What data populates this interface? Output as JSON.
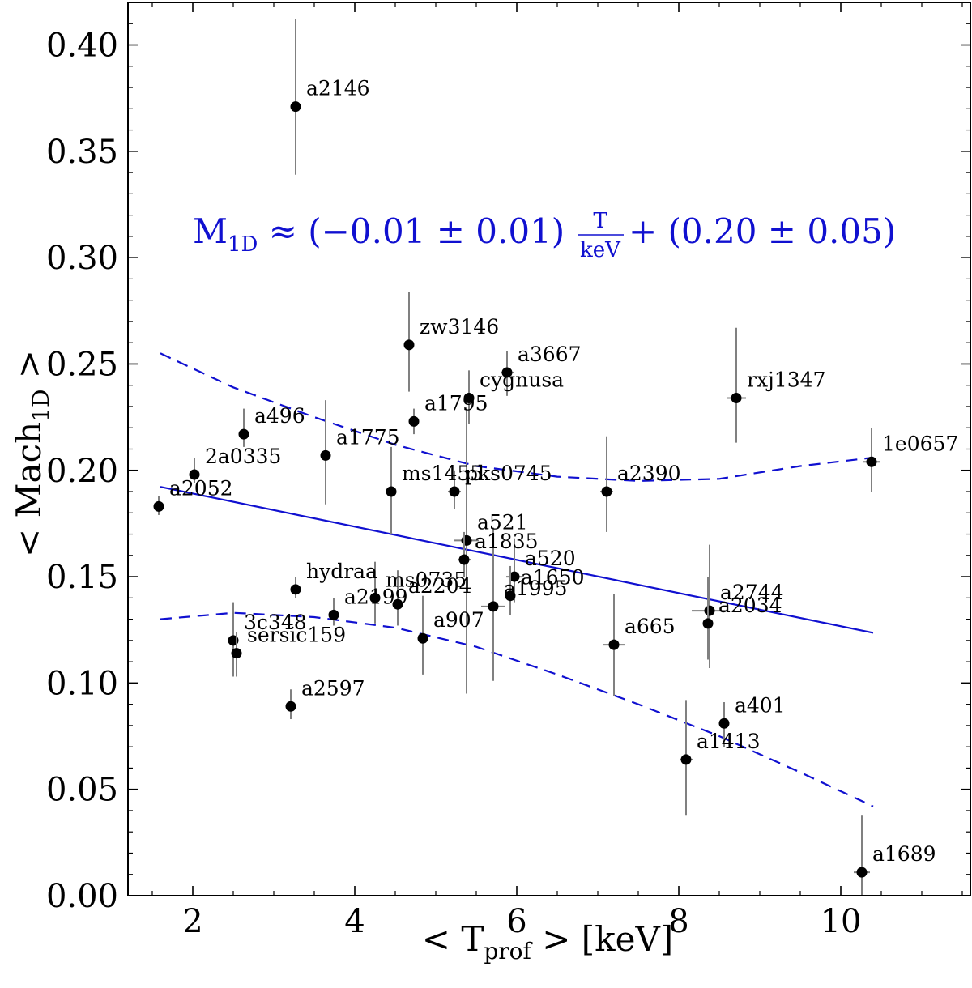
{
  "chart_data": {
    "type": "scatter",
    "xlabel": "< T",
    "xlabel_sub": "prof",
    "xlabel_tail": " >  [keV]",
    "ylabel": "< Mach",
    "ylabel_sub": "1D",
    "ylabel_tail": " >",
    "xlim": [
      1.2,
      11.6
    ],
    "ylim": [
      0.0,
      0.42
    ],
    "x_ticks": [
      2,
      4,
      6,
      8,
      10
    ],
    "x_tick_labels": [
      "2",
      "4",
      "6",
      "8",
      "10"
    ],
    "y_ticks": [
      0.0,
      0.05,
      0.1,
      0.15,
      0.2,
      0.25,
      0.3,
      0.35,
      0.4
    ],
    "y_tick_labels": [
      "0.00",
      "0.05",
      "0.10",
      "0.15",
      "0.20",
      "0.25",
      "0.30",
      "0.35",
      "0.40"
    ],
    "grid": false,
    "colors": {
      "points": "#000000",
      "errorbars": "#808080",
      "fit": "#1010d0"
    },
    "annotation": {
      "lhs": "M",
      "lhs_sub": "1D",
      "middle": " ≈ (−0.01 ± 0.01) ",
      "frac_num": "T",
      "frac_den": "keV",
      "rhs": " + (0.20 ± 0.05)"
    },
    "fit_line": {
      "slope": -0.0078,
      "intercept": 0.2047,
      "x_range": [
        1.6,
        10.4
      ]
    },
    "confidence_upper": [
      {
        "x": 1.6,
        "y": 0.255
      },
      {
        "x": 2.5,
        "y": 0.239
      },
      {
        "x": 3.5,
        "y": 0.225
      },
      {
        "x": 4.5,
        "y": 0.212
      },
      {
        "x": 5.5,
        "y": 0.202
      },
      {
        "x": 6.5,
        "y": 0.197
      },
      {
        "x": 7.5,
        "y": 0.195
      },
      {
        "x": 8.5,
        "y": 0.196
      },
      {
        "x": 9.5,
        "y": 0.202
      },
      {
        "x": 10.4,
        "y": 0.206
      }
    ],
    "confidence_lower": [
      {
        "x": 1.6,
        "y": 0.13
      },
      {
        "x": 2.5,
        "y": 0.133
      },
      {
        "x": 3.5,
        "y": 0.131
      },
      {
        "x": 4.5,
        "y": 0.126
      },
      {
        "x": 5.5,
        "y": 0.117
      },
      {
        "x": 6.5,
        "y": 0.104
      },
      {
        "x": 7.5,
        "y": 0.09
      },
      {
        "x": 8.5,
        "y": 0.075
      },
      {
        "x": 9.5,
        "y": 0.058
      },
      {
        "x": 10.4,
        "y": 0.042
      }
    ],
    "points": [
      {
        "name": "a2146",
        "x": 3.27,
        "y": 0.371,
        "xerr": 0.0,
        "yerr_lo": 0.032,
        "yerr_hi": 0.041
      },
      {
        "name": "zw3146",
        "x": 4.67,
        "y": 0.259,
        "xerr": 0.05,
        "yerr_lo": 0.022,
        "yerr_hi": 0.025
      },
      {
        "name": "a3667",
        "x": 5.88,
        "y": 0.246,
        "xerr": 0.08,
        "yerr_lo": 0.011,
        "yerr_hi": 0.01
      },
      {
        "name": "cygnusa",
        "x": 5.41,
        "y": 0.234,
        "xerr": 0.05,
        "yerr_lo": 0.012,
        "yerr_hi": 0.013
      },
      {
        "name": "rxj1347",
        "x": 8.71,
        "y": 0.234,
        "xerr": 0.12,
        "yerr_lo": 0.021,
        "yerr_hi": 0.033
      },
      {
        "name": "a1795",
        "x": 4.73,
        "y": 0.223,
        "xerr": 0.06,
        "yerr_lo": 0.006,
        "yerr_hi": 0.006
      },
      {
        "name": "a496",
        "x": 2.63,
        "y": 0.217,
        "xerr": 0.03,
        "yerr_lo": 0.006,
        "yerr_hi": 0.012
      },
      {
        "name": "a1775",
        "x": 3.64,
        "y": 0.207,
        "xerr": 0.05,
        "yerr_lo": 0.023,
        "yerr_hi": 0.026
      },
      {
        "name": "1e0657",
        "x": 10.38,
        "y": 0.204,
        "xerr": 0.1,
        "yerr_lo": 0.014,
        "yerr_hi": 0.016
      },
      {
        "name": "2a0335",
        "x": 2.02,
        "y": 0.198,
        "xerr": 0.03,
        "yerr_lo": 0.004,
        "yerr_hi": 0.008
      },
      {
        "name": "ms1455",
        "x": 4.45,
        "y": 0.19,
        "xerr": 0.05,
        "yerr_lo": 0.02,
        "yerr_hi": 0.021
      },
      {
        "name": "pks0745",
        "x": 5.23,
        "y": 0.19,
        "xerr": 0.08,
        "yerr_lo": 0.008,
        "yerr_hi": 0.01
      },
      {
        "name": "a2390",
        "x": 7.11,
        "y": 0.19,
        "xerr": 0.08,
        "yerr_lo": 0.019,
        "yerr_hi": 0.026
      },
      {
        "name": "a2052",
        "x": 1.58,
        "y": 0.183,
        "xerr": 0.03,
        "yerr_lo": 0.004,
        "yerr_hi": 0.005
      },
      {
        "name": "a521",
        "x": 5.38,
        "y": 0.167,
        "xerr": 0.15,
        "yerr_lo": 0.072,
        "yerr_hi": 0.063
      },
      {
        "name": "a1835",
        "x": 5.35,
        "y": 0.158,
        "xerr": 0.08,
        "yerr_lo": 0.008,
        "yerr_hi": 0.013
      },
      {
        "name": "a520",
        "x": 5.97,
        "y": 0.15,
        "xerr": 0.1,
        "yerr_lo": 0.012,
        "yerr_hi": 0.018
      },
      {
        "name": "hydraa",
        "x": 3.27,
        "y": 0.144,
        "xerr": 0.03,
        "yerr_lo": 0.004,
        "yerr_hi": 0.006
      },
      {
        "name": "a1650",
        "x": 5.92,
        "y": 0.141,
        "xerr": 0.06,
        "yerr_lo": 0.009,
        "yerr_hi": 0.014
      },
      {
        "name": "ms0735",
        "x": 4.25,
        "y": 0.14,
        "xerr": 0.05,
        "yerr_lo": 0.012,
        "yerr_hi": 0.017
      },
      {
        "name": "a2204",
        "x": 4.53,
        "y": 0.137,
        "xerr": 0.06,
        "yerr_lo": 0.01,
        "yerr_hi": 0.016
      },
      {
        "name": "a1995",
        "x": 5.71,
        "y": 0.136,
        "xerr": 0.15,
        "yerr_lo": 0.035,
        "yerr_hi": 0.037
      },
      {
        "name": "a2744",
        "x": 8.38,
        "y": 0.134,
        "xerr": 0.22,
        "yerr_lo": 0.027,
        "yerr_hi": 0.031
      },
      {
        "name": "a2199",
        "x": 3.74,
        "y": 0.132,
        "xerr": 0.04,
        "yerr_lo": 0.005,
        "yerr_hi": 0.008
      },
      {
        "name": "a2034",
        "x": 8.36,
        "y": 0.128,
        "xerr": 0.06,
        "yerr_lo": 0.017,
        "yerr_hi": 0.022
      },
      {
        "name": "a907",
        "x": 4.84,
        "y": 0.121,
        "xerr": 0.05,
        "yerr_lo": 0.017,
        "yerr_hi": 0.02
      },
      {
        "name": "3c348",
        "x": 2.5,
        "y": 0.12,
        "xerr": 0.03,
        "yerr_lo": 0.017,
        "yerr_hi": 0.018
      },
      {
        "name": "a665",
        "x": 7.2,
        "y": 0.118,
        "xerr": 0.13,
        "yerr_lo": 0.024,
        "yerr_hi": 0.024
      },
      {
        "name": "sersic159",
        "x": 2.54,
        "y": 0.114,
        "xerr": 0.03,
        "yerr_lo": 0.011,
        "yerr_hi": 0.01
      },
      {
        "name": "a2597",
        "x": 3.21,
        "y": 0.089,
        "xerr": 0.03,
        "yerr_lo": 0.006,
        "yerr_hi": 0.008
      },
      {
        "name": "a401",
        "x": 8.56,
        "y": 0.081,
        "xerr": 0.06,
        "yerr_lo": 0.011,
        "yerr_hi": 0.01
      },
      {
        "name": "a1413",
        "x": 8.09,
        "y": 0.064,
        "xerr": 0.08,
        "yerr_lo": 0.026,
        "yerr_hi": 0.028
      },
      {
        "name": "a1689",
        "x": 10.26,
        "y": 0.011,
        "xerr": 0.1,
        "yerr_lo": 0.011,
        "yerr_hi": 0.027
      }
    ]
  }
}
